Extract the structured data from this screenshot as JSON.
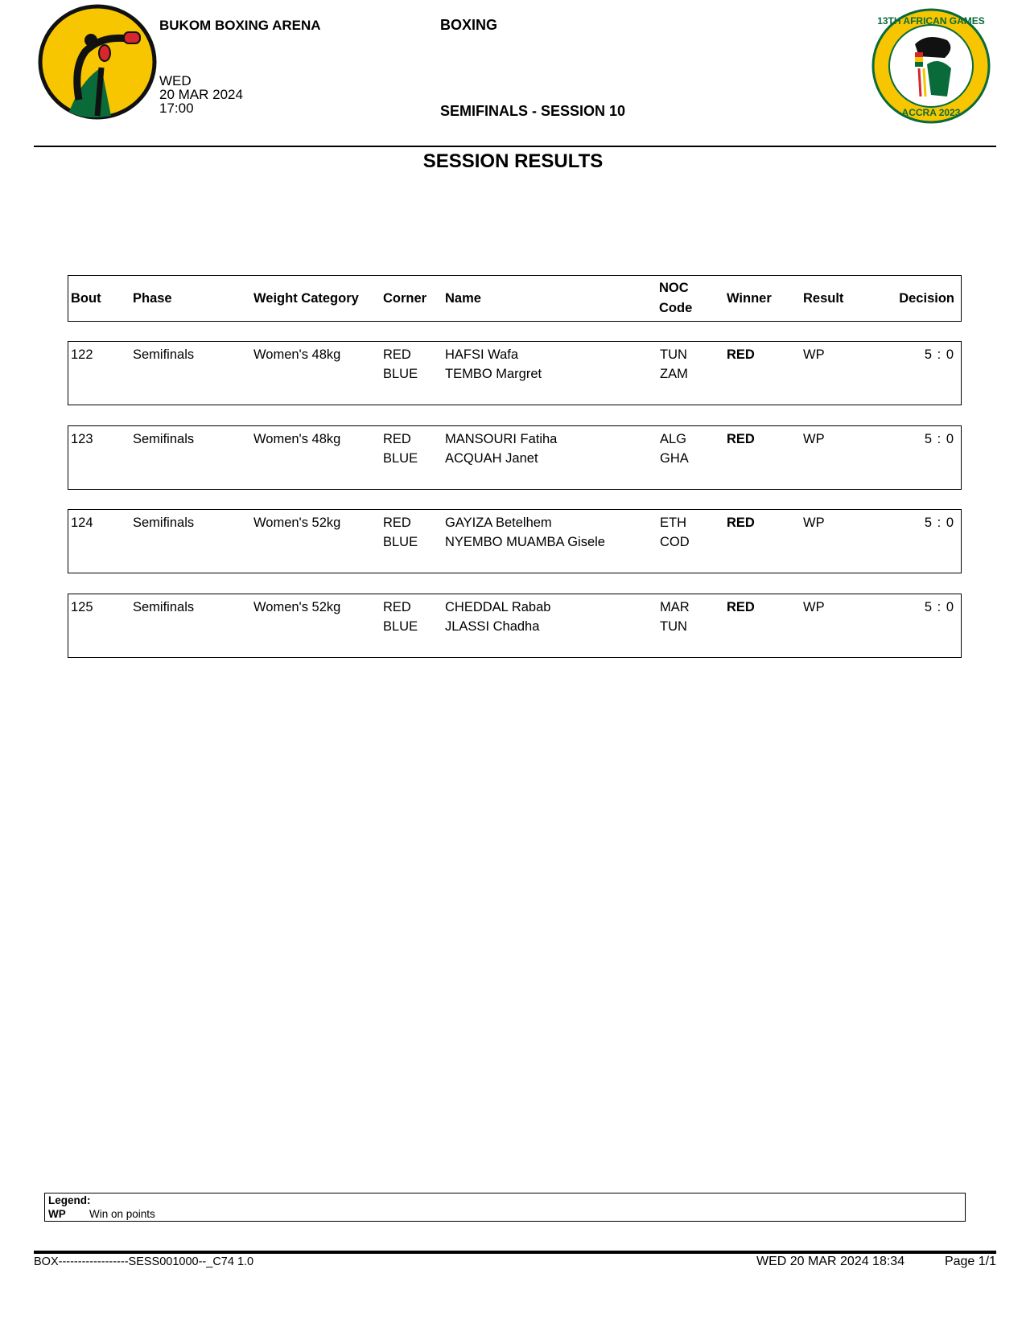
{
  "header": {
    "venue": "BUKOM BOXING ARENA",
    "day": "WED",
    "date": "20 MAR 2024",
    "time": "17:00",
    "sport": "BOXING",
    "session": "SEMIFINALS - SESSION 10",
    "title": "SESSION RESULTS",
    "games_logo_text": "13TH AFRICAN GAMES ACCRA 2023"
  },
  "table": {
    "columns": {
      "bout": "Bout",
      "phase": "Phase",
      "weight": "Weight Category",
      "corner": "Corner",
      "name": "Name",
      "noc1": "NOC",
      "noc2": "Code",
      "winner": "Winner",
      "result": "Result",
      "decision": "Decision"
    },
    "rows": [
      {
        "bout": "122",
        "phase": "Semifinals",
        "weight": "Women's 48kg",
        "corner_red": "RED",
        "corner_blue": "BLUE",
        "name_red": "HAFSI Wafa",
        "name_blue": "TEMBO Margret",
        "noc_red": "TUN",
        "noc_blue": "ZAM",
        "winner": "RED",
        "result": "WP",
        "decision": "5 : 0"
      },
      {
        "bout": "123",
        "phase": "Semifinals",
        "weight": "Women's 48kg",
        "corner_red": "RED",
        "corner_blue": "BLUE",
        "name_red": "MANSOURI Fatiha",
        "name_blue": "ACQUAH Janet",
        "noc_red": "ALG",
        "noc_blue": "GHA",
        "winner": "RED",
        "result": "WP",
        "decision": "5 : 0"
      },
      {
        "bout": "124",
        "phase": "Semifinals",
        "weight": "Women's 52kg",
        "corner_red": "RED",
        "corner_blue": "BLUE",
        "name_red": "GAYIZA Betelhem",
        "name_blue": "NYEMBO MUAMBA Gisele",
        "noc_red": "ETH",
        "noc_blue": "COD",
        "winner": "RED",
        "result": "WP",
        "decision": "5 : 0"
      },
      {
        "bout": "125",
        "phase": "Semifinals",
        "weight": "Women's 52kg",
        "corner_red": "RED",
        "corner_blue": "BLUE",
        "name_red": "CHEDDAL Rabab",
        "name_blue": "JLASSI Chadha",
        "noc_red": "MAR",
        "noc_blue": "TUN",
        "winner": "RED",
        "result": "WP",
        "decision": "5 : 0"
      }
    ]
  },
  "legend": {
    "title": "Legend:",
    "code": "WP",
    "meaning": "Win on points"
  },
  "footer": {
    "code": "BOX------------------SESS001000--_C74 1.0",
    "printed": "WED 20 MAR 2024 18:34",
    "page": "Page 1/1"
  },
  "colors": {
    "logo_yellow": "#F7C600",
    "logo_green": "#0A6B3A",
    "glove_red": "#D7262E"
  }
}
